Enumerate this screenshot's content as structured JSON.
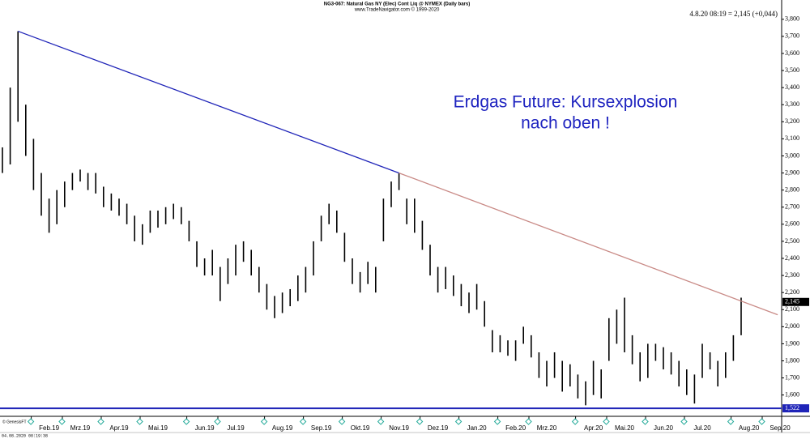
{
  "chart_data": {
    "type": "bar",
    "title": "NG3-067: Natural Gas NY (Elec) Cont Liq @ NYMEX  (Daily bars)",
    "subtitle": "www.TradeNavigator.com © 1999-2020",
    "quote": "4.8.20 08:19 = 2,145 (+0,044)",
    "annotation": [
      "Erdgas Future: Kursexplosion",
      "nach oben !"
    ],
    "copyright": "© GenesisFT",
    "timestamp": "04.08.2020 08:19:38",
    "categories": [
      null,
      null,
      null,
      null,
      null,
      null,
      "Feb.19",
      null,
      null,
      null,
      "Mrz.19",
      null,
      null,
      null,
      null,
      "Apr.19",
      null,
      null,
      null,
      null,
      "Mai.19",
      null,
      null,
      null,
      null,
      null,
      "Jun.19",
      null,
      null,
      null,
      "Jul.19",
      null,
      null,
      null,
      null,
      null,
      "Aug.19",
      null,
      null,
      null,
      null,
      "Sep.19",
      null,
      null,
      null,
      null,
      "Okt.19",
      null,
      null,
      null,
      null,
      "Nov.19",
      null,
      null,
      null,
      null,
      "Dez.19",
      null,
      null,
      null,
      null,
      "Jan.20",
      null,
      null,
      null,
      null,
      "Feb.20",
      null,
      null,
      null,
      "Mrz.20",
      null,
      null,
      null,
      null,
      null,
      "Apr.20",
      null,
      null,
      null,
      "Mai.20",
      null,
      null,
      null,
      null,
      "Jun.20",
      null,
      null,
      null,
      null,
      "Jul.20",
      null,
      null,
      null,
      null,
      null,
      "Aug.20",
      null,
      null,
      null,
      "Sep.20"
    ],
    "series": [
      {
        "name": null,
        "color": "#000000",
        "high": [
          3.05,
          3.4,
          3.73,
          3.3,
          3.1,
          2.9,
          2.75,
          2.8,
          2.85,
          2.9,
          2.92,
          2.9,
          2.9,
          2.82,
          2.78,
          2.75,
          2.72,
          2.65,
          2.6,
          2.68,
          2.68,
          2.7,
          2.72,
          2.7,
          2.62,
          2.5,
          2.4,
          2.45,
          2.35,
          2.4,
          2.48,
          2.5,
          2.45,
          2.35,
          2.25,
          2.18,
          2.2,
          2.22,
          2.3,
          2.35,
          2.5,
          2.65,
          2.72,
          2.68,
          2.55,
          2.4,
          2.32,
          2.38,
          2.35,
          2.75,
          2.85,
          2.9,
          2.75,
          2.75,
          2.62,
          2.48,
          2.35,
          2.35,
          2.3,
          2.25,
          2.2,
          2.25,
          2.15,
          1.98,
          1.95,
          1.92,
          1.92,
          2.0,
          1.95,
          1.85,
          1.8,
          1.85,
          1.8,
          1.78,
          1.72,
          1.68,
          1.8,
          1.75,
          2.05,
          2.1,
          2.17,
          1.95,
          1.85,
          1.9,
          1.9,
          1.88,
          1.85,
          1.8,
          1.75,
          1.72,
          1.9,
          1.85,
          1.8,
          1.85,
          1.95,
          2.17,
          null,
          null,
          null,
          null,
          null
        ],
        "low": [
          2.9,
          2.95,
          3.2,
          3.0,
          2.8,
          2.65,
          2.55,
          2.6,
          2.7,
          2.8,
          2.85,
          2.8,
          2.78,
          2.7,
          2.68,
          2.65,
          2.6,
          2.5,
          2.48,
          2.55,
          2.58,
          2.6,
          2.63,
          2.6,
          2.5,
          2.35,
          2.3,
          2.3,
          2.15,
          2.25,
          2.3,
          2.38,
          2.3,
          2.2,
          2.1,
          2.05,
          2.08,
          2.12,
          2.15,
          2.2,
          2.3,
          2.5,
          2.6,
          2.55,
          2.38,
          2.25,
          2.2,
          2.25,
          2.2,
          2.5,
          2.7,
          2.8,
          2.6,
          2.55,
          2.45,
          2.3,
          2.2,
          2.22,
          2.18,
          2.12,
          2.08,
          2.1,
          2.0,
          1.85,
          1.85,
          1.83,
          1.8,
          1.9,
          1.82,
          1.7,
          1.65,
          1.7,
          1.62,
          1.65,
          1.58,
          1.54,
          1.6,
          1.58,
          1.8,
          1.9,
          1.85,
          1.78,
          1.68,
          1.7,
          1.8,
          1.75,
          1.72,
          1.65,
          1.6,
          1.55,
          1.7,
          1.75,
          1.65,
          1.7,
          1.8,
          1.95,
          null,
          null,
          null,
          null,
          null
        ]
      }
    ],
    "trendlines": [
      {
        "color": "#1f24b8",
        "points": [
          {
            "category": 2,
            "value": 3.73
          },
          {
            "category": 51,
            "value": 2.9
          }
        ]
      },
      {
        "color": "#c98a86",
        "points": [
          {
            "category": 51,
            "value": 2.9
          },
          {
            "category": 99.7,
            "value": 2.07
          }
        ]
      }
    ],
    "last_price": {
      "value": 2.145,
      "label": "2,145"
    },
    "support": {
      "value": 1.522,
      "label": "1,522",
      "color": "#1f24b8"
    },
    "ylim": [
      1.48,
      3.875
    ],
    "yticks": [
      {
        "value": 1.6,
        "label": "1,600"
      },
      {
        "value": 1.7,
        "label": "1,700"
      },
      {
        "value": 1.8,
        "label": "1,800"
      },
      {
        "value": 1.9,
        "label": "1,900"
      },
      {
        "value": 2.0,
        "label": "2,000"
      },
      {
        "value": 2.1,
        "label": "2,100"
      },
      {
        "value": 2.2,
        "label": "2,200"
      },
      {
        "value": 2.3,
        "label": "2,300"
      },
      {
        "value": 2.4,
        "label": "2,400"
      },
      {
        "value": 2.5,
        "label": "2,500"
      },
      {
        "value": 2.6,
        "label": "2,600"
      },
      {
        "value": 2.7,
        "label": "2,700"
      },
      {
        "value": 2.8,
        "label": "2,800"
      },
      {
        "value": 2.9,
        "label": "2,900"
      },
      {
        "value": 3.0,
        "label": "3,000"
      },
      {
        "value": 3.1,
        "label": "3,100"
      },
      {
        "value": 3.2,
        "label": "3,200"
      },
      {
        "value": 3.3,
        "label": "3,300"
      },
      {
        "value": 3.4,
        "label": "3,400"
      },
      {
        "value": 3.5,
        "label": "3,500"
      },
      {
        "value": 3.6,
        "label": "3,600"
      },
      {
        "value": 3.7,
        "label": "3,700"
      },
      {
        "value": 3.8,
        "label": "3,800"
      }
    ]
  }
}
